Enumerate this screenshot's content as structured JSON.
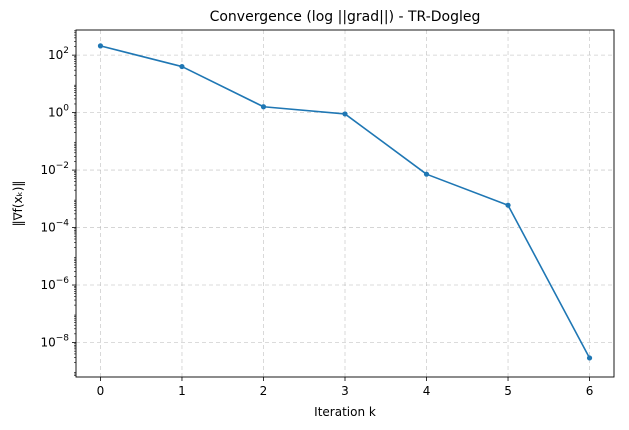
{
  "chart_data": {
    "type": "line",
    "title": "Convergence (log ||grad||) - TR-Dogleg",
    "xlabel": "Iteration k",
    "ylabel": "‖∇f(xₖ)‖",
    "y_scale": "log",
    "grid": true,
    "grid_style": "dashed",
    "xlim": [
      -0.3,
      6.3
    ],
    "ylim": [
      6.3e-10,
      750
    ],
    "x_ticks": [
      0,
      1,
      2,
      3,
      4,
      5,
      6
    ],
    "y_tick_exponents": [
      2,
      0,
      -2,
      -4,
      -6,
      -8
    ],
    "line_color": "#1f77b4",
    "marker": "circle",
    "series": [
      {
        "x": [
          0,
          1,
          2,
          3,
          4,
          5,
          6
        ],
        "values": [
          210,
          40,
          1.6,
          0.9,
          0.0072,
          0.0006,
          2.9e-09
        ]
      }
    ]
  }
}
